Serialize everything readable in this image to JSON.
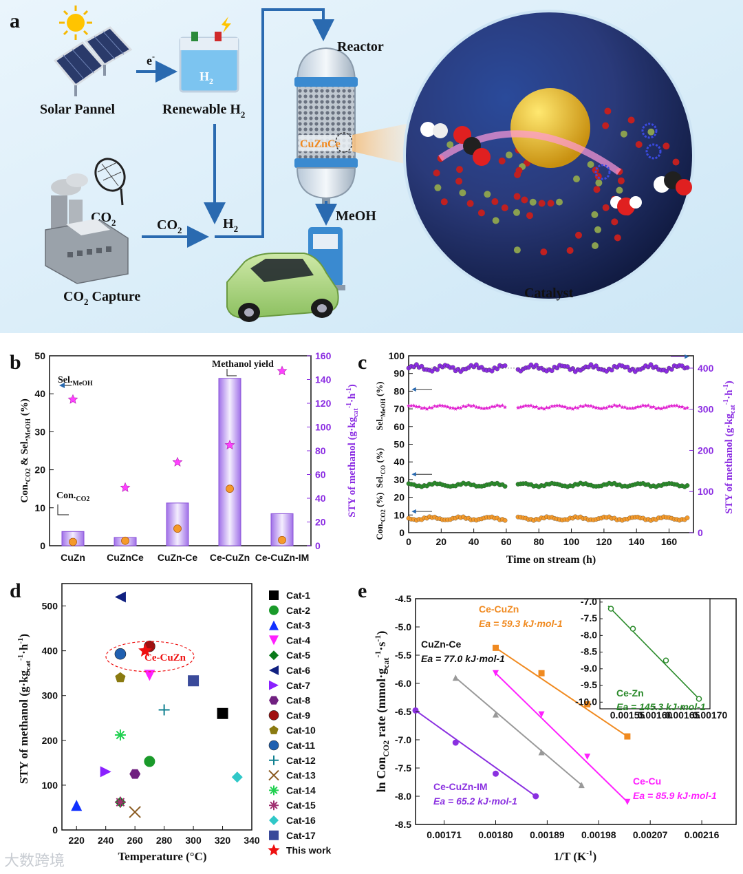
{
  "panel_a": {
    "label": "a",
    "solar": "Solar Pannel",
    "electron": "e",
    "electron_sup": "-",
    "h2_box": "H",
    "h2_box_sub": "2",
    "renewable": "Renewable H",
    "renewable_sub": "2",
    "reactor": "Reactor",
    "catalyst_tag": "CuZnCe",
    "meoh": "MeOH",
    "co2_top": "CO",
    "co2_top_sub": "2",
    "co2_arrow": "CO",
    "co2_arrow_sub": "2",
    "h2_arrow": "H",
    "h2_arrow_sub": "2",
    "capture": "CO",
    "capture_sub": "2",
    "capture_rest": " Capture",
    "catalyst": "Catalyst"
  },
  "chart_data": [
    {
      "panel": "b",
      "type": "bar",
      "categories": [
        "CuZn",
        "CuZnCe",
        "CuZn-Ce",
        "Ce-CuZn",
        "Ce-CuZn-IM"
      ],
      "ylabel_left": "Con.CO2 & Sel.MeOH (%)",
      "ylabel_right": "STY of methanol (g·kgcat-1·h-1)",
      "ylim_left": [
        0,
        50
      ],
      "ylim_right": [
        0,
        160
      ],
      "yticks_left": [
        "0",
        "10",
        "20",
        "30",
        "40",
        "50"
      ],
      "yticks_right": [
        "0",
        "20",
        "40",
        "60",
        "80",
        "100",
        "120",
        "140",
        "160"
      ],
      "series": [
        {
          "name": "Methanol yield",
          "axis": "right",
          "type": "bar",
          "values": [
            12,
            7,
            36,
            141,
            27
          ]
        },
        {
          "name": "Sel.MeOH",
          "axis": "left",
          "type": "star",
          "values": [
            38.5,
            15.3,
            22,
            26.5,
            46
          ]
        },
        {
          "name": "Con.CO2",
          "axis": "left",
          "type": "circle",
          "values": [
            1,
            1.3,
            4.5,
            15,
            1.5
          ]
        }
      ],
      "annotations": [
        "Sel.MeOH",
        "Con.CO2",
        "Methanol yield"
      ]
    },
    {
      "panel": "c",
      "type": "scatter",
      "xlabel": "Time on stream (h)",
      "xlim": [
        0,
        175
      ],
      "xticks": [
        "0",
        "20",
        "40",
        "60",
        "80",
        "100",
        "120",
        "140",
        "160"
      ],
      "ylim_left": [
        0,
        100
      ],
      "yticks_left": [
        "0",
        "10",
        "20",
        "30",
        "40",
        "50",
        "60",
        "70",
        "80",
        "90",
        "100"
      ],
      "ylim_right": [
        0,
        430
      ],
      "yticks_right": [
        "0",
        "100",
        "200",
        "300",
        "400"
      ],
      "ylabels_left": [
        "Sel.MeOH (%)",
        "Sel.CO (%)",
        "Con.CO2 (%)"
      ],
      "ylabel_right": "STY of methanol (g·kgcat-1·h-1)",
      "series": [
        {
          "name": "STY",
          "axis": "right",
          "color": "#8a2be2",
          "mean": 400
        },
        {
          "name": "Sel.MeOH",
          "axis": "left",
          "color": "#e020d0",
          "mean": 71
        },
        {
          "name": "Sel.CO",
          "axis": "left",
          "color": "#2a8a2a",
          "mean": 27
        },
        {
          "name": "Con.CO2",
          "axis": "left",
          "color": "#f59a2a",
          "mean": 8
        }
      ],
      "gap_h": [
        60,
        66
      ]
    },
    {
      "panel": "d",
      "type": "scatter",
      "xlabel": "Temperature (°C)",
      "ylabel": "STY of methanol (g·kgcat-1·h-1)",
      "xlim": [
        210,
        340
      ],
      "ylim": [
        0,
        550
      ],
      "xticks": [
        "220",
        "240",
        "260",
        "280",
        "300",
        "320",
        "340"
      ],
      "yticks": [
        "0",
        "100",
        "200",
        "300",
        "400",
        "500"
      ],
      "annotation": "Ce-CuZn",
      "points": [
        {
          "name": "Cat-1",
          "x": 320,
          "y": 260,
          "color": "#000000",
          "marker": "square"
        },
        {
          "name": "Cat-2",
          "x": 270,
          "y": 153,
          "color": "#1a9a2a",
          "marker": "circle"
        },
        {
          "name": "Cat-3",
          "x": 220,
          "y": 55,
          "color": "#1030ff",
          "marker": "tri-up"
        },
        {
          "name": "Cat-4",
          "x": 270,
          "y": 345,
          "color": "#ff20ff",
          "marker": "tri-down"
        },
        {
          "name": "Cat-5",
          "x": 250,
          "y": 62,
          "color": "#0a7a1a",
          "marker": "diamond"
        },
        {
          "name": "Cat-6",
          "x": 250,
          "y": 520,
          "color": "#102080",
          "marker": "tri-left"
        },
        {
          "name": "Cat-7",
          "x": 240,
          "y": 130,
          "color": "#8a20ff",
          "marker": "tri-right"
        },
        {
          "name": "Cat-8",
          "x": 260,
          "y": 125,
          "color": "#702080",
          "marker": "hexagon"
        },
        {
          "name": "Cat-9",
          "x": 270,
          "y": 410,
          "color": "#a01010",
          "marker": "sphere"
        },
        {
          "name": "Cat-10",
          "x": 250,
          "y": 340,
          "color": "#8a7a10",
          "marker": "pentagon"
        },
        {
          "name": "Cat-11",
          "x": 250,
          "y": 393,
          "color": "#2060b0",
          "marker": "sphere"
        },
        {
          "name": "Cat-12",
          "x": 280,
          "y": 268,
          "color": "#108090",
          "marker": "plus"
        },
        {
          "name": "Cat-13",
          "x": 260,
          "y": 40,
          "color": "#8a5a20",
          "marker": "x"
        },
        {
          "name": "Cat-14",
          "x": 250,
          "y": 212,
          "color": "#20d050",
          "marker": "asterisk"
        },
        {
          "name": "Cat-15",
          "x": 250,
          "y": 62,
          "color": "#a03070",
          "marker": "asterisk"
        },
        {
          "name": "Cat-16",
          "x": 330,
          "y": 118,
          "color": "#30c8c8",
          "marker": "diamond"
        },
        {
          "name": "Cat-17",
          "x": 300,
          "y": 333,
          "color": "#3a4a9a",
          "marker": "square"
        },
        {
          "name": "This work",
          "x": 267,
          "y": 400,
          "color": "#ee1010",
          "marker": "star"
        }
      ]
    },
    {
      "panel": "e",
      "type": "line",
      "xlabel": "1/T (K-1)",
      "ylabel": "ln ConCO2 rate (mmol·gcat-1·s-1)",
      "xlim": [
        0.00166,
        0.00222
      ],
      "ylim": [
        -8.5,
        -4.5
      ],
      "xticks": [
        "0.00171",
        "0.00180",
        "0.00189",
        "0.00198",
        "0.00207",
        "0.00216"
      ],
      "yticks": [
        "-4.5",
        "-5.0",
        "-5.5",
        "-6.0",
        "-6.5",
        "-7.0",
        "-7.5",
        "-8.0",
        "-8.5"
      ],
      "series": [
        {
          "name": "Ce-CuZn",
          "ea": "Ea = 59.3 kJ·mol-1",
          "color": "#f08a20",
          "marker": "square",
          "x": [
            0.0018,
            0.00188,
            0.00196,
            0.00203
          ],
          "y": [
            -5.37,
            -5.82,
            -6.37,
            -6.94
          ]
        },
        {
          "name": "CuZn-Ce",
          "ea": "Ea = 77.0 kJ·mol-1",
          "color": "#999999",
          "marker": "triangle",
          "x": [
            0.00173,
            0.0018,
            0.00188,
            0.00195
          ],
          "y": [
            -5.9,
            -6.55,
            -7.22,
            -7.8
          ]
        },
        {
          "name": "Ce-Cu",
          "ea": "Ea = 85.9 kJ·mol-1",
          "color": "#ff20ff",
          "marker": "triangle-down",
          "x": [
            0.0018,
            0.00188,
            0.00196,
            0.00203
          ],
          "y": [
            -5.82,
            -6.55,
            -7.3,
            -8.1
          ]
        },
        {
          "name": "Ce-CuZn-IM",
          "ea": "Ea = 65.2 kJ·mol-1",
          "color": "#8a30e0",
          "marker": "circle",
          "x": [
            0.00166,
            0.00173,
            0.0018,
            0.00187
          ],
          "y": [
            -6.48,
            -7.05,
            -7.6,
            -8.0
          ]
        }
      ],
      "inset": {
        "name": "Ce-Zn",
        "ea": "Ea = 145.3 kJ·mol-1",
        "color": "#2a8a2a",
        "xlim": [
          0.0015,
          0.0017
        ],
        "ylim": [
          -10.2,
          -6.9
        ],
        "xticks": [
          "0.00155",
          "0.00160",
          "0.00165",
          "0.00170"
        ],
        "yticks": [
          "-7.0",
          "-7.5",
          "-8.0",
          "-8.5",
          "-9.0",
          "-9.5",
          "-10.0"
        ],
        "x": [
          0.00152,
          0.00156,
          0.00162,
          0.00168
        ],
        "y": [
          -7.2,
          -7.8,
          -8.75,
          -9.9
        ]
      }
    }
  ],
  "panel_labels": {
    "b": "b",
    "c": "c",
    "d": "d",
    "e": "e"
  },
  "watermark": "大数跨境"
}
